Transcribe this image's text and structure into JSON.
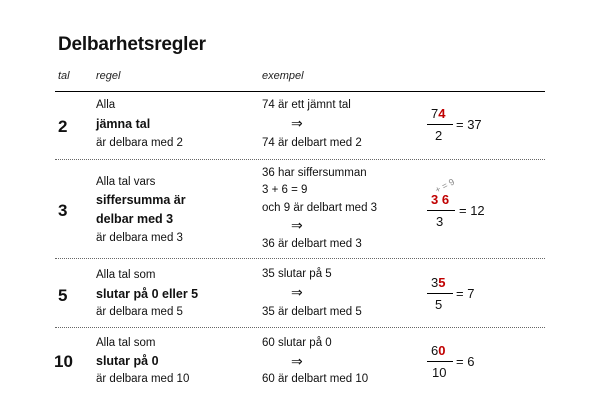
{
  "title": "Delbarhetsregler",
  "headers": {
    "tal": "tal",
    "regel": "regel",
    "exempel": "exempel"
  },
  "arrow": "⇒",
  "rows": [
    {
      "tal": "2",
      "rule_top": "Alla",
      "rule_bold": [
        "jämna tal"
      ],
      "rule_bottom": "är delbara med 2",
      "example_lines": [
        "74 är ett jämnt tal"
      ],
      "example_conclusion": "74 är delbart med 2",
      "frac": {
        "black_digits": "7",
        "red_digit": "4",
        "denominator": "2",
        "result": "= 37"
      }
    },
    {
      "tal": "3",
      "rule_top": "Alla tal vars",
      "rule_bold": [
        "siffersumma är",
        "delbar med 3"
      ],
      "rule_bottom": "är delbara med 3",
      "example_lines": [
        "36 har siffersumman",
        "3 + 6 = 9",
        "och 9 är delbart med 3"
      ],
      "example_conclusion": "36 är delbart med 3",
      "frac": {
        "red_digit_a": "3",
        "red_digit_b": "6",
        "denominator": "3",
        "result": "= 12",
        "sum_note": "+ = 9"
      }
    },
    {
      "tal": "5",
      "rule_top": "Alla tal som",
      "rule_bold": [
        "slutar på 0 eller 5"
      ],
      "rule_bottom": "är delbara med 5",
      "example_lines": [
        "35 slutar på 5"
      ],
      "example_conclusion": "35 är delbart med 5",
      "frac": {
        "black_digits": "3",
        "red_digit": "5",
        "denominator": "5",
        "result": "= 7"
      }
    },
    {
      "tal": "10",
      "rule_top": "Alla tal som",
      "rule_bold": [
        "slutar på 0"
      ],
      "rule_bottom": "är delbara med 10",
      "example_lines": [
        "60 slutar på 0"
      ],
      "example_conclusion": "60 är delbart med 10",
      "frac": {
        "black_digits": "6",
        "red_digit": "0",
        "denominator": "10",
        "result": "= 6"
      }
    }
  ]
}
